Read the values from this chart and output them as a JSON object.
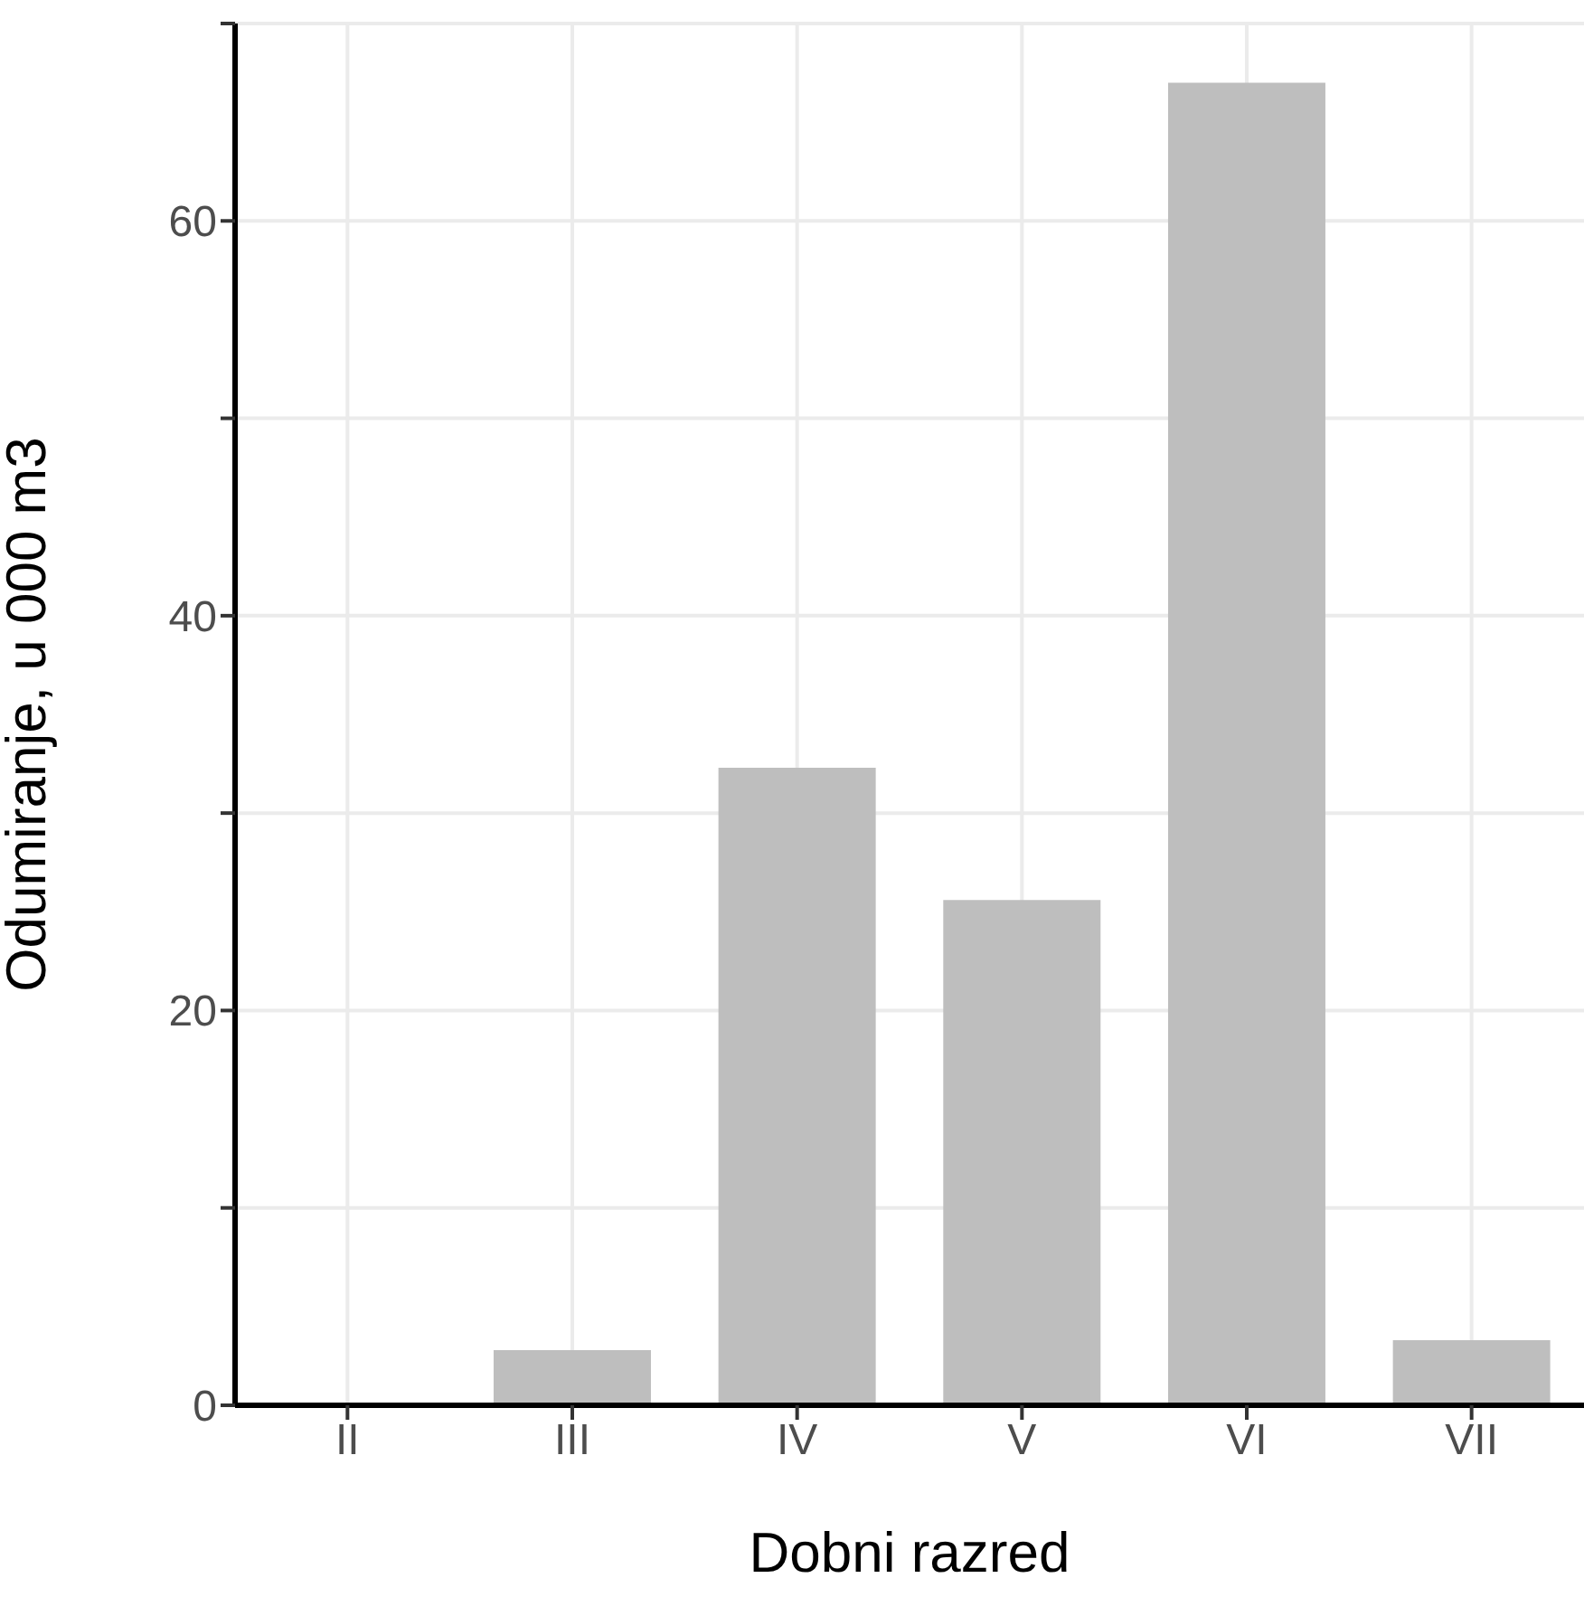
{
  "chart_data": {
    "type": "bar",
    "xlabel": "Dobni razred",
    "ylabel": "Odumiranje, u 000 m3",
    "categories": [
      "II",
      "III",
      "IV",
      "V",
      "VI",
      "VII"
    ],
    "values": [
      0,
      2.8,
      32.3,
      25.6,
      67.0,
      3.3
    ],
    "color": "#bebebe",
    "ylim": [
      0,
      70
    ],
    "yticks": [
      0,
      {
        "value": 10,
        "label": null
      },
      20,
      {
        "value": 30,
        "label": null
      },
      40,
      {
        "value": 50,
        "label": null
      },
      60,
      {
        "value": 70,
        "label": null
      }
    ],
    "grid": true
  }
}
